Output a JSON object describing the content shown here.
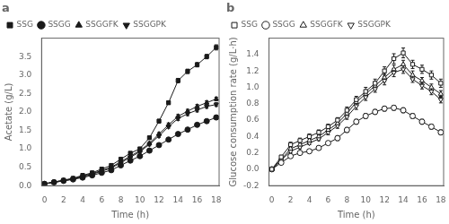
{
  "chart_data": [
    {
      "type": "line",
      "annotations": [
        "a"
      ],
      "xlabel": "Time (h)",
      "ylabel": "Acetate (g/L)",
      "x": [
        0,
        1,
        2,
        3,
        4,
        5,
        6,
        7,
        8,
        9,
        10,
        11,
        12,
        13,
        14,
        15,
        16,
        17,
        18
      ],
      "xlim": [
        -0.3,
        18.3
      ],
      "xticks": [
        0,
        2,
        4,
        6,
        8,
        10,
        12,
        14,
        16,
        18
      ],
      "ylim": [
        0.0,
        4.0
      ],
      "yticks": [
        {
          "value": 0.0,
          "label": "0.0"
        },
        0.5,
        {
          "value": 1.0,
          "label": "1.0"
        },
        1.5,
        {
          "value": 2.0,
          "label": "2.0"
        },
        2.5,
        {
          "value": 3.0,
          "label": "3.0"
        },
        3.5
      ],
      "grid": false,
      "legend": "upper left",
      "color": "#1a1a1a",
      "series": [
        {
          "name": "SSG",
          "marker": "square",
          "values": [
            0.05,
            0.1,
            0.15,
            0.2,
            0.28,
            0.35,
            0.45,
            0.55,
            0.72,
            0.88,
            1.0,
            1.3,
            1.75,
            2.25,
            2.85,
            3.1,
            3.28,
            3.5,
            3.75
          ],
          "errors": [
            0.01,
            0.01,
            0.01,
            0.01,
            0.01,
            0.02,
            0.02,
            0.02,
            0.03,
            0.03,
            0.03,
            0.04,
            0.05,
            0.05,
            0.06,
            0.06,
            0.06,
            0.06,
            0.07
          ]
        },
        {
          "name": "SSGG",
          "marker": "circle",
          "values": [
            0.05,
            0.09,
            0.13,
            0.17,
            0.22,
            0.28,
            0.35,
            0.42,
            0.55,
            0.68,
            0.8,
            0.95,
            1.1,
            1.25,
            1.4,
            1.52,
            1.65,
            1.75,
            1.85
          ],
          "errors": [
            0.01,
            0.01,
            0.01,
            0.01,
            0.01,
            0.02,
            0.02,
            0.02,
            0.02,
            0.03,
            0.03,
            0.03,
            0.03,
            0.04,
            0.04,
            0.04,
            0.04,
            0.04,
            0.05
          ]
        },
        {
          "name": "SSGGFK",
          "marker": "triangle-up",
          "values": [
            0.05,
            0.1,
            0.14,
            0.19,
            0.26,
            0.33,
            0.41,
            0.5,
            0.65,
            0.8,
            0.95,
            1.15,
            1.4,
            1.65,
            1.88,
            2.02,
            2.15,
            2.25,
            2.35
          ],
          "errors": [
            0.01,
            0.01,
            0.01,
            0.01,
            0.01,
            0.02,
            0.02,
            0.02,
            0.03,
            0.03,
            0.03,
            0.04,
            0.04,
            0.05,
            0.05,
            0.05,
            0.05,
            0.05,
            0.05
          ]
        },
        {
          "name": "SSGGPK",
          "marker": "triangle-down",
          "values": [
            0.05,
            0.09,
            0.13,
            0.18,
            0.24,
            0.31,
            0.39,
            0.48,
            0.62,
            0.77,
            0.92,
            1.12,
            1.35,
            1.6,
            1.82,
            1.95,
            2.05,
            2.15,
            2.2
          ],
          "errors": [
            0.01,
            0.01,
            0.01,
            0.01,
            0.01,
            0.02,
            0.02,
            0.02,
            0.03,
            0.03,
            0.03,
            0.04,
            0.04,
            0.04,
            0.05,
            0.05,
            0.05,
            0.05,
            0.05
          ]
        }
      ]
    },
    {
      "type": "line",
      "annotations": [
        "b"
      ],
      "xlabel": "Time (h)",
      "ylabel": "Glucose consumption rate (g/L·h)",
      "x": [
        0,
        1,
        2,
        3,
        4,
        5,
        6,
        7,
        8,
        9,
        10,
        11,
        12,
        13,
        14,
        15,
        16,
        17,
        18
      ],
      "xlim": [
        -0.3,
        18.3
      ],
      "xticks": [
        0,
        2,
        4,
        6,
        8,
        10,
        12,
        14,
        16,
        18
      ],
      "ylim": [
        -0.2,
        1.6
      ],
      "yticks": [
        -0.2,
        {
          "value": 0.0,
          "label": "0.0"
        },
        0.2,
        0.4,
        0.6,
        0.8,
        {
          "value": 1.0,
          "label": "1.0"
        },
        1.2,
        1.4
      ],
      "grid": false,
      "legend": "upper left",
      "color": "#1a1a1a",
      "series": [
        {
          "name": "SSG",
          "marker": "square-open",
          "values": [
            0.0,
            0.15,
            0.3,
            0.35,
            0.4,
            0.45,
            0.52,
            0.6,
            0.72,
            0.85,
            0.95,
            1.05,
            1.2,
            1.35,
            1.42,
            1.28,
            1.22,
            1.15,
            1.05
          ],
          "errors": [
            0.01,
            0.02,
            0.03,
            0.03,
            0.03,
            0.03,
            0.03,
            0.03,
            0.04,
            0.04,
            0.05,
            0.05,
            0.05,
            0.06,
            0.06,
            0.05,
            0.05,
            0.05,
            0.05
          ]
        },
        {
          "name": "SSGG",
          "marker": "circle-open",
          "values": [
            0.0,
            0.08,
            0.16,
            0.2,
            0.22,
            0.26,
            0.32,
            0.38,
            0.48,
            0.58,
            0.65,
            0.7,
            0.74,
            0.75,
            0.72,
            0.65,
            0.58,
            0.52,
            0.45
          ],
          "errors": [
            0.01,
            0.01,
            0.02,
            0.02,
            0.02,
            0.02,
            0.02,
            0.03,
            0.03,
            0.03,
            0.03,
            0.03,
            0.03,
            0.03,
            0.03,
            0.03,
            0.03,
            0.03,
            0.03
          ]
        },
        {
          "name": "SSGGFK",
          "marker": "triangle-up-open",
          "values": [
            0.0,
            0.12,
            0.25,
            0.3,
            0.35,
            0.4,
            0.48,
            0.56,
            0.68,
            0.82,
            0.92,
            1.02,
            1.12,
            1.22,
            1.28,
            1.15,
            1.08,
            1.0,
            0.92
          ],
          "errors": [
            0.01,
            0.02,
            0.03,
            0.03,
            0.03,
            0.03,
            0.03,
            0.03,
            0.04,
            0.04,
            0.04,
            0.05,
            0.05,
            0.05,
            0.05,
            0.05,
            0.04,
            0.04,
            0.04
          ]
        },
        {
          "name": "SSGGPK",
          "marker": "triangle-down-open",
          "values": [
            0.0,
            0.11,
            0.22,
            0.27,
            0.32,
            0.37,
            0.45,
            0.53,
            0.64,
            0.77,
            0.88,
            0.98,
            1.08,
            1.18,
            1.22,
            1.1,
            1.02,
            0.95,
            0.85
          ],
          "errors": [
            0.01,
            0.02,
            0.02,
            0.02,
            0.02,
            0.02,
            0.03,
            0.03,
            0.03,
            0.04,
            0.04,
            0.04,
            0.05,
            0.05,
            0.05,
            0.04,
            0.04,
            0.04,
            0.04
          ]
        }
      ]
    }
  ]
}
